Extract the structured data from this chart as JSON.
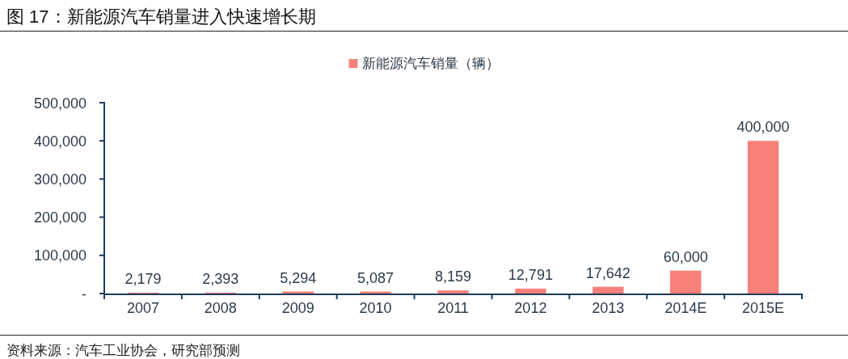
{
  "chart_data": {
    "type": "bar",
    "title": "图 17：新能源汽车销量进入快速增长期",
    "categories": [
      "2007",
      "2008",
      "2009",
      "2010",
      "2011",
      "2012",
      "2013",
      "2014E",
      "2015E"
    ],
    "series": [
      {
        "name": "新能源汽车销量（辆）",
        "color": "#f8807a",
        "values": [
          2179,
          2393,
          5294,
          5087,
          8159,
          12791,
          17642,
          60000,
          400000
        ],
        "value_labels": [
          "2,179",
          "2,393",
          "5,294",
          "5,087",
          "8,159",
          "12,791",
          "17,642",
          "60,000",
          "400,000"
        ]
      }
    ],
    "ylim": [
      0,
      500000
    ],
    "yticks": [
      {
        "value": 0,
        "label": "-"
      },
      {
        "value": 100000,
        "label": "100,000"
      },
      {
        "value": 200000,
        "label": "200,000"
      },
      {
        "value": 300000,
        "label": "300,000"
      },
      {
        "value": 400000,
        "label": "400,000"
      },
      {
        "value": 500000,
        "label": "500,000"
      }
    ],
    "legend": "top",
    "grid": false,
    "annotations": [
      "资料来源：汽车工业协会，研究部预测"
    ]
  }
}
